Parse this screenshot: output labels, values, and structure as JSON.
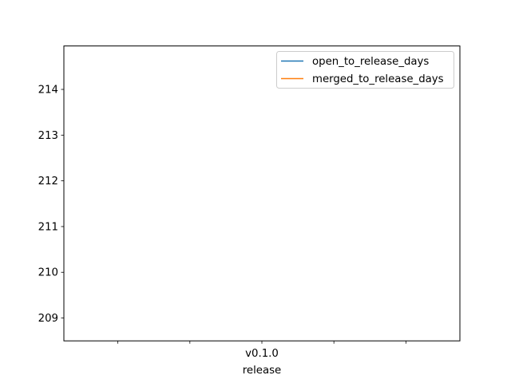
{
  "chart_data": {
    "type": "line",
    "categories": [
      "",
      "",
      "v0.1.0",
      "",
      ""
    ],
    "xlabel": "release",
    "ylabel": "",
    "yticks": [
      209,
      210,
      211,
      212,
      213,
      214
    ],
    "ylim": [
      208.5,
      214.95
    ],
    "legend_position": "top-right",
    "grid": false,
    "series": [
      {
        "name": "open_to_release_days",
        "color": "#1f77b4",
        "values": [
          null,
          null,
          null,
          null,
          null
        ]
      },
      {
        "name": "merged_to_release_days",
        "color": "#ff7f0e",
        "values": [
          null,
          null,
          null,
          null,
          null
        ]
      }
    ]
  }
}
